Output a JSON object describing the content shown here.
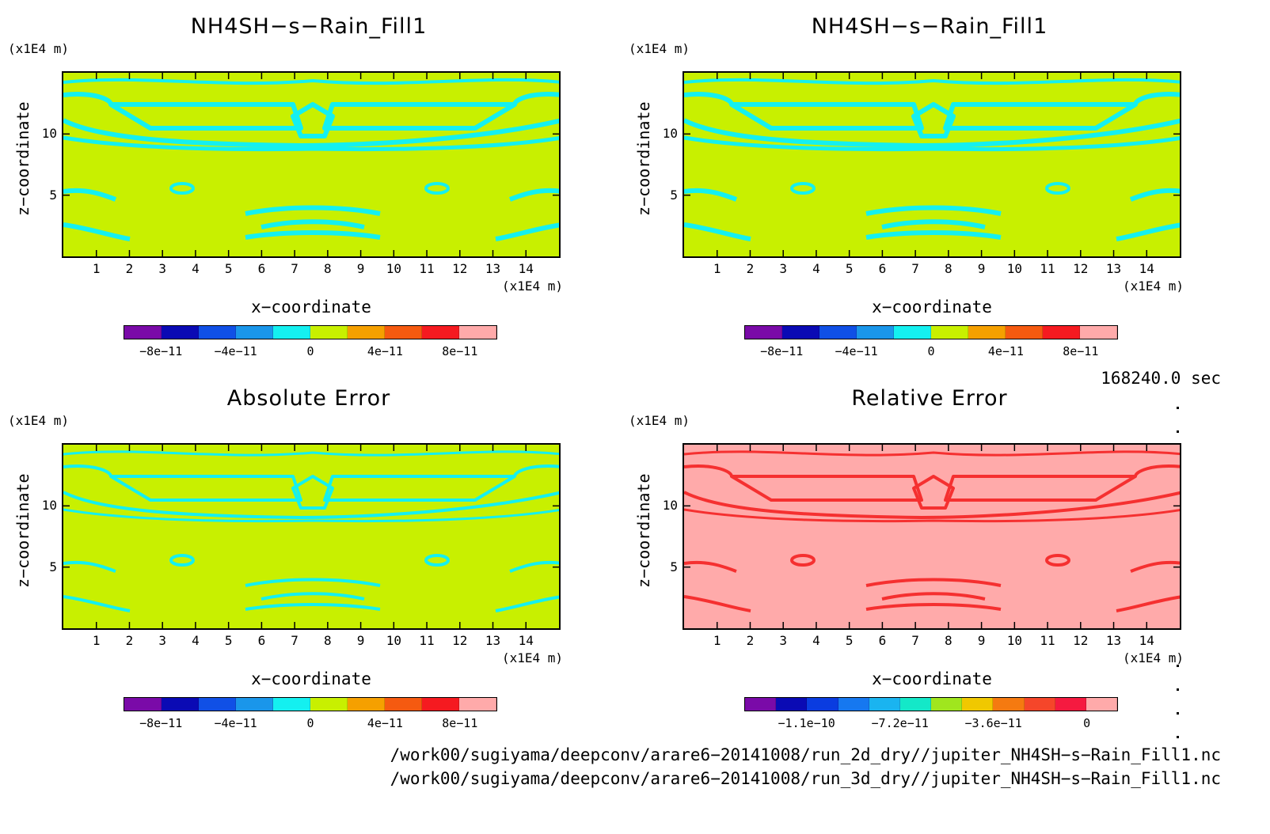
{
  "panels": [
    {
      "title": "NH4SH−s−Rain_Fill1",
      "y_unit": "(x1E4 m)",
      "x_unit": "(x1E4 m)",
      "ylabel": "z−coordinate",
      "xlabel": "x−coordinate"
    },
    {
      "title": "NH4SH−s−Rain_Fill1",
      "y_unit": "(x1E4 m)",
      "x_unit": "(x1E4 m)",
      "ylabel": "z−coordinate",
      "xlabel": "x−coordinate"
    },
    {
      "title": "Absolute Error",
      "y_unit": "(x1E4 m)",
      "x_unit": "(x1E4 m)",
      "ylabel": "z−coordinate",
      "xlabel": "x−coordinate"
    },
    {
      "title": "Relative Error",
      "y_unit": "(x1E4 m)",
      "x_unit": "(x1E4 m)",
      "ylabel": "z−coordinate",
      "xlabel": "x−coordinate"
    }
  ],
  "time_label": "168240.0 sec",
  "file_paths": [
    "/work00/sugiyama/deepconv/arare6−20141008/run_2d_dry//jupiter_NH4SH−s−Rain_Fill1.nc",
    "/work00/sugiyama/deepconv/arare6−20141008/run_3d_dry//jupiter_NH4SH−s−Rain_Fill1.nc"
  ],
  "colorbars": {
    "standard": {
      "colors": [
        "#7a0aa8",
        "#0a0ab4",
        "#1050e6",
        "#1a96ea",
        "#14f0f0",
        "#c8f000",
        "#f5a000",
        "#f55a10",
        "#f51a20",
        "#ffaaaa"
      ],
      "labels": [
        "−8e−11",
        "−4e−11",
        "0",
        "4e−11",
        "8e−11"
      ]
    },
    "relative": {
      "colors": [
        "#7a0aa8",
        "#0a0ab4",
        "#0a3ce0",
        "#1678f0",
        "#1ab4f0",
        "#14e8c8",
        "#a0e61e",
        "#f0c800",
        "#f57a10",
        "#f5462a",
        "#f51a40",
        "#ffaaaa"
      ],
      "labels": [
        "−1.1e−10",
        "−7.2e−11",
        "−3.6e−11",
        "0"
      ]
    }
  },
  "chart_data": [
    {
      "type": "heatmap",
      "title": "NH4SH−s−Rain_Fill1",
      "xlabel": "x−coordinate",
      "ylabel": "z−coordinate",
      "x_ticks": [
        1,
        2,
        3,
        4,
        5,
        6,
        7,
        8,
        9,
        10,
        11,
        12,
        13,
        14
      ],
      "y_ticks": [
        5,
        10
      ],
      "xlim": [
        0,
        15
      ],
      "ylim": [
        0,
        15
      ],
      "base_color": "#c8f000",
      "feature_color": "#14f0f0",
      "colorbar": "standard"
    },
    {
      "type": "heatmap",
      "title": "NH4SH−s−Rain_Fill1",
      "xlabel": "x−coordinate",
      "ylabel": "z−coordinate",
      "x_ticks": [
        1,
        2,
        3,
        4,
        5,
        6,
        7,
        8,
        9,
        10,
        11,
        12,
        13,
        14
      ],
      "y_ticks": [
        5,
        10
      ],
      "xlim": [
        0,
        15
      ],
      "ylim": [
        0,
        15
      ],
      "base_color": "#c8f000",
      "feature_color": "#14f0f0",
      "colorbar": "standard"
    },
    {
      "type": "heatmap",
      "title": "Absolute Error",
      "xlabel": "x−coordinate",
      "ylabel": "z−coordinate",
      "x_ticks": [
        1,
        2,
        3,
        4,
        5,
        6,
        7,
        8,
        9,
        10,
        11,
        12,
        13,
        14
      ],
      "y_ticks": [
        5,
        10
      ],
      "xlim": [
        0,
        15
      ],
      "ylim": [
        0,
        15
      ],
      "base_color": "#c8f000",
      "feature_color": "#14f0f0",
      "colorbar": "standard"
    },
    {
      "type": "heatmap",
      "title": "Relative Error",
      "xlabel": "x−coordinate",
      "ylabel": "z−coordinate",
      "x_ticks": [
        1,
        2,
        3,
        4,
        5,
        6,
        7,
        8,
        9,
        10,
        11,
        12,
        13,
        14
      ],
      "y_ticks": [
        5,
        10
      ],
      "xlim": [
        0,
        15
      ],
      "ylim": [
        0,
        15
      ],
      "base_color": "#ffaaaa",
      "feature_color": "#f53030",
      "colorbar": "relative"
    }
  ]
}
